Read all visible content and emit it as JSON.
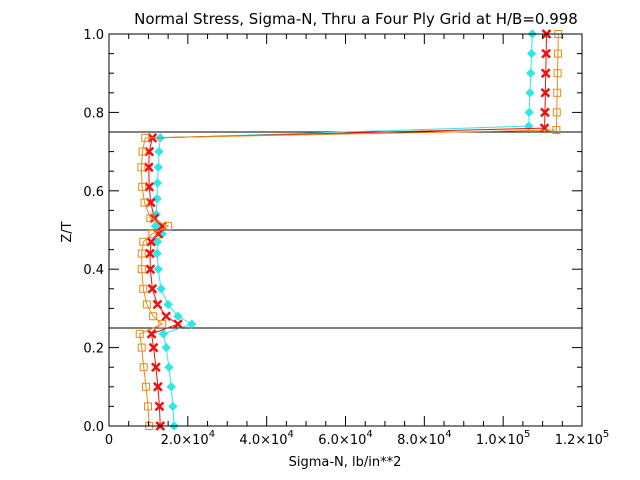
{
  "chart_data": {
    "type": "line",
    "title": "Normal Stress, Sigma-N, Thru a Four Ply Grid at H/B=0.998",
    "xlabel": "Sigma-N,  lb/in**2",
    "ylabel": "Z/T",
    "xlim": [
      0,
      120000
    ],
    "ylim": [
      0,
      1.0
    ],
    "x_ticks": [
      {
        "value": 0,
        "mant": "0",
        "exp": ""
      },
      {
        "value": 20000,
        "mant": "2.0×10",
        "exp": "4"
      },
      {
        "value": 40000,
        "mant": "4.0×10",
        "exp": "4"
      },
      {
        "value": 60000,
        "mant": "6.0×10",
        "exp": "4"
      },
      {
        "value": 80000,
        "mant": "8.0×10",
        "exp": "4"
      },
      {
        "value": 100000,
        "mant": "1.0×10",
        "exp": "5"
      },
      {
        "value": 120000,
        "mant": "1.2×10",
        "exp": "5"
      }
    ],
    "y_ticks": [
      {
        "value": 0.0,
        "label": "0.0"
      },
      {
        "value": 0.2,
        "label": "0.2"
      },
      {
        "value": 0.4,
        "label": "0.4"
      },
      {
        "value": 0.6,
        "label": "0.6"
      },
      {
        "value": 0.8,
        "label": "0.8"
      },
      {
        "value": 1.0,
        "label": "1.0"
      }
    ],
    "ply_interfaces": [
      0.25,
      0.5,
      0.75
    ],
    "series": [
      {
        "color": "#33e6e6",
        "marker": "diamond",
        "points": [
          [
            16500,
            0.0
          ],
          [
            16200,
            0.05
          ],
          [
            15800,
            0.1
          ],
          [
            15200,
            0.15
          ],
          [
            14500,
            0.2
          ],
          [
            13800,
            0.235
          ],
          [
            21000,
            0.26
          ],
          [
            17500,
            0.28
          ],
          [
            15000,
            0.31
          ],
          [
            13200,
            0.35
          ],
          [
            12500,
            0.4
          ],
          [
            12200,
            0.44
          ],
          [
            12300,
            0.47
          ],
          [
            13500,
            0.49
          ],
          [
            11800,
            0.51
          ],
          [
            12000,
            0.54
          ],
          [
            12200,
            0.58
          ],
          [
            12300,
            0.62
          ],
          [
            12500,
            0.66
          ],
          [
            12700,
            0.7
          ],
          [
            13000,
            0.735
          ],
          [
            106500,
            0.765
          ],
          [
            106600,
            0.8
          ],
          [
            106800,
            0.85
          ],
          [
            107000,
            0.9
          ],
          [
            107200,
            0.95
          ],
          [
            107400,
            1.0
          ]
        ]
      },
      {
        "color": "#ee1111",
        "marker": "x",
        "points": [
          [
            13000,
            0.0
          ],
          [
            12800,
            0.05
          ],
          [
            12400,
            0.1
          ],
          [
            11900,
            0.15
          ],
          [
            11300,
            0.2
          ],
          [
            10800,
            0.235
          ],
          [
            17500,
            0.26
          ],
          [
            14500,
            0.28
          ],
          [
            12300,
            0.31
          ],
          [
            11000,
            0.35
          ],
          [
            10500,
            0.4
          ],
          [
            10400,
            0.44
          ],
          [
            10700,
            0.47
          ],
          [
            12500,
            0.49
          ],
          [
            13500,
            0.51
          ],
          [
            11500,
            0.53
          ],
          [
            10600,
            0.57
          ],
          [
            10200,
            0.61
          ],
          [
            10100,
            0.66
          ],
          [
            10200,
            0.7
          ],
          [
            11000,
            0.735
          ],
          [
            110500,
            0.76
          ],
          [
            110600,
            0.8
          ],
          [
            110700,
            0.85
          ],
          [
            110800,
            0.9
          ],
          [
            110900,
            0.95
          ],
          [
            111000,
            1.0
          ]
        ]
      },
      {
        "color": "#e68a1a",
        "marker": "square",
        "points": [
          [
            10200,
            0.0
          ],
          [
            9900,
            0.05
          ],
          [
            9400,
            0.1
          ],
          [
            8800,
            0.15
          ],
          [
            8300,
            0.2
          ],
          [
            7800,
            0.235
          ],
          [
            13500,
            0.26
          ],
          [
            11200,
            0.28
          ],
          [
            9600,
            0.31
          ],
          [
            8700,
            0.35
          ],
          [
            8300,
            0.4
          ],
          [
            8300,
            0.44
          ],
          [
            8700,
            0.47
          ],
          [
            11000,
            0.49
          ],
          [
            15000,
            0.51
          ],
          [
            10500,
            0.53
          ],
          [
            9000,
            0.57
          ],
          [
            8400,
            0.61
          ],
          [
            8200,
            0.66
          ],
          [
            8500,
            0.7
          ],
          [
            9200,
            0.735
          ],
          [
            113500,
            0.755
          ],
          [
            113600,
            0.8
          ],
          [
            113700,
            0.85
          ],
          [
            113800,
            0.9
          ],
          [
            113900,
            0.95
          ],
          [
            114000,
            1.0
          ]
        ]
      }
    ]
  }
}
